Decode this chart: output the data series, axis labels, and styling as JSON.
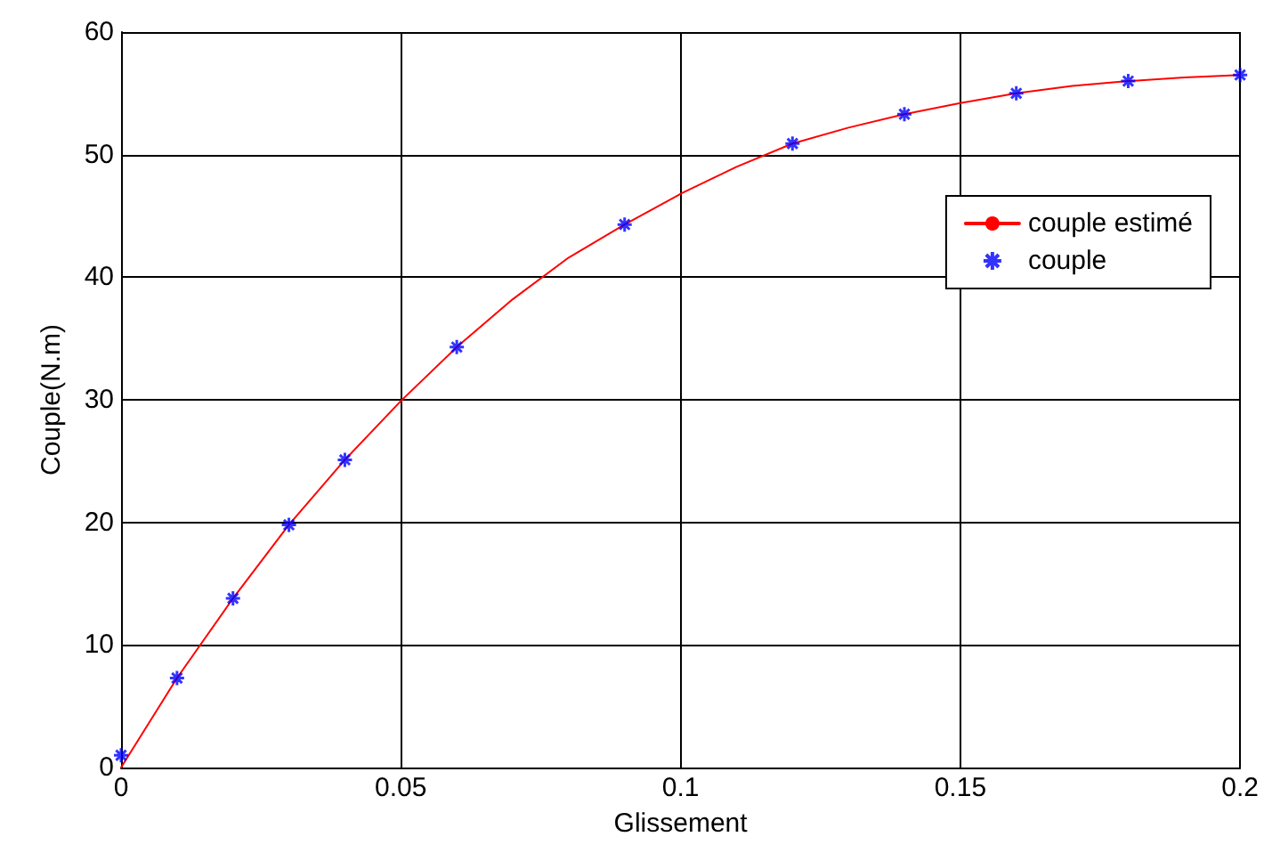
{
  "chart_data": {
    "type": "line",
    "xlabel": "Glissement",
    "ylabel": "Couple(N.m)",
    "xlim": [
      0,
      0.2
    ],
    "xticks": [
      0,
      0.05,
      0.1,
      0.15,
      0.2
    ],
    "ylim": [
      0,
      60
    ],
    "yticks": [
      0,
      10,
      20,
      30,
      40,
      50,
      60
    ],
    "grid": true,
    "legend": "right",
    "series": [
      {
        "name": "couple estimé",
        "color": "#ff0000",
        "marker": "none",
        "line_style": "solid",
        "x": [
          0,
          0.01,
          0.02,
          0.03,
          0.04,
          0.05,
          0.06,
          0.07,
          0.08,
          0.09,
          0.1,
          0.11,
          0.12,
          0.13,
          0.14,
          0.15,
          0.16,
          0.17,
          0.18,
          0.19,
          0.2
        ],
        "values": [
          0,
          7.3,
          13.8,
          19.8,
          25.1,
          29.9,
          34.3,
          38.2,
          41.6,
          44.3,
          46.8,
          49,
          50.9,
          52.2,
          53.3,
          54.2,
          55,
          55.6,
          56,
          56.3,
          56.5
        ]
      },
      {
        "name": "couple",
        "type": "scatter",
        "color": "#0000ff",
        "marker": "cross",
        "x": [
          0,
          0.01,
          0.02,
          0.03,
          0.04,
          0.06,
          0.09,
          0.12,
          0.14,
          0.16,
          0.18,
          0.2
        ],
        "values": [
          1,
          7.3,
          13.8,
          19.8,
          25.1,
          34.3,
          44.3,
          50.9,
          53.3,
          55,
          56,
          56.5
        ]
      }
    ]
  }
}
